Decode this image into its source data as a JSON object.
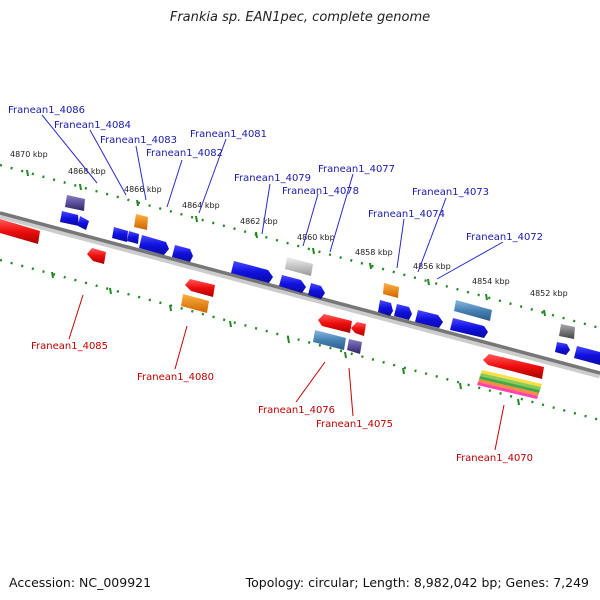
{
  "title": "Frankia sp. EAN1pec, complete genome",
  "footer": {
    "accession": "Accession: NC_009921",
    "summary": "Topology: circular; Length: 8,982,042 bp; Genes: 7,249"
  },
  "colors": {
    "forward_gene": "#1a1aee",
    "reverse_gene": "#ee1111",
    "scale_dots": "#228822",
    "backbone": "#888888",
    "label_forward": "#1a1aaa",
    "label_reverse": "#bb0000"
  },
  "scale_labels": [
    "4870 kbp",
    "4868 kbp",
    "4866 kbp",
    "4864 kbp",
    "4862 kbp",
    "4860 kbp",
    "4858 kbp",
    "4856 kbp",
    "4854 kbp",
    "4852 kbp"
  ],
  "gene_labels_forward": [
    "Franean1_4086",
    "Franean1_4084",
    "Franean1_4083",
    "Franean1_4082",
    "Franean1_4081",
    "Franean1_4079",
    "Franean1_4078",
    "Franean1_4077",
    "Franean1_4074",
    "Franean1_4073",
    "Franean1_4072"
  ],
  "gene_labels_reverse": [
    "Franean1_4085",
    "Franean1_4080",
    "Franean1_4076",
    "Franean1_4075",
    "Franean1_4070"
  ]
}
